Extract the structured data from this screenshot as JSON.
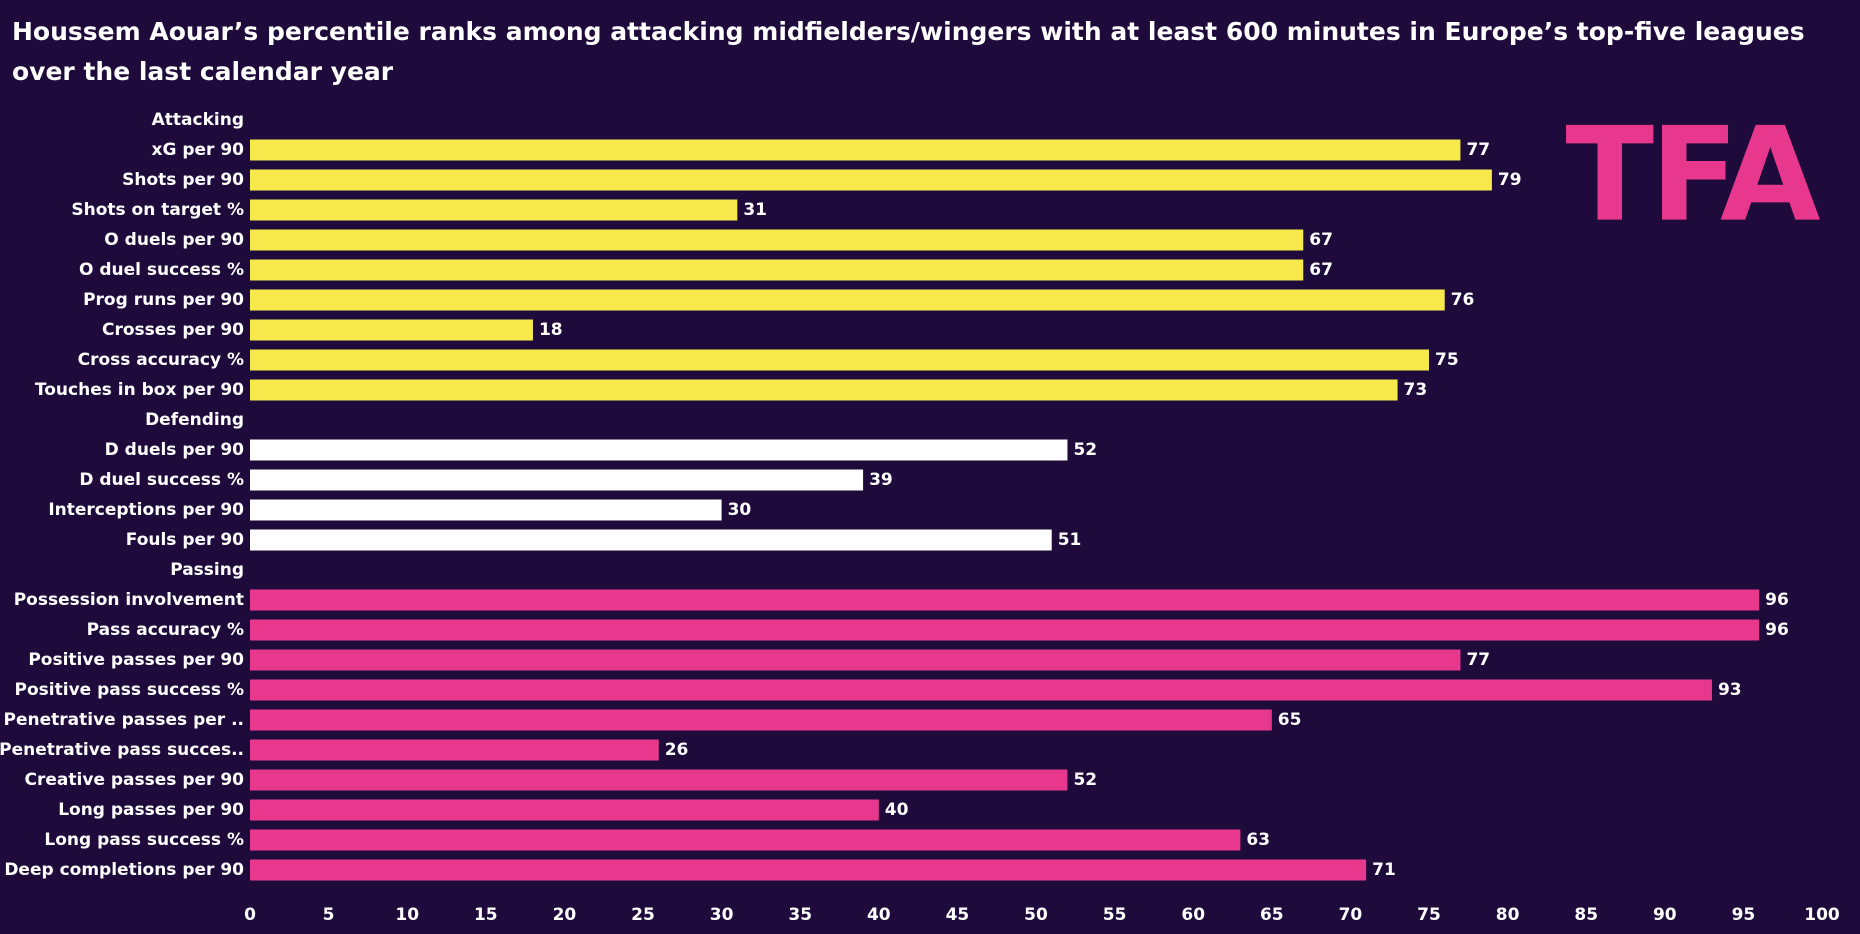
{
  "chart_data": {
    "type": "bar",
    "title": "Houssem Aouar’s percentile ranks among attacking midfielders/wingers with at least 600 minutes in Europe’s top-five leagues over the last calendar year",
    "logo": "TFA",
    "groups": [
      {
        "name": "Attacking",
        "color": "#f7e94b",
        "categories": [
          "xG per 90",
          "Shots per 90",
          "Shots on target %",
          "O duels per 90",
          "O duel success %",
          "Prog runs per 90",
          "Crosses per 90",
          "Cross accuracy %",
          "Touches in box per 90"
        ],
        "values": [
          77,
          79,
          31,
          67,
          67,
          76,
          18,
          75,
          73
        ]
      },
      {
        "name": "Defending",
        "color": "#ffffff",
        "categories": [
          "D duels per 90",
          "D duel success %",
          "Interceptions per 90",
          "Fouls per 90"
        ],
        "values": [
          52,
          39,
          30,
          51
        ]
      },
      {
        "name": "Passing",
        "color": "#e8388e",
        "categories": [
          "Possession involvement",
          "Pass accuracy %",
          "Positive passes per 90",
          "Positive pass success %",
          "Penetrative passes per ..",
          "Penetrative pass succes..",
          "Creative passes per 90",
          "Long passes per 90",
          "Long pass success %",
          "Deep completions per 90"
        ],
        "values": [
          96,
          96,
          77,
          93,
          65,
          26,
          52,
          40,
          63,
          71
        ]
      }
    ],
    "xlim": [
      0,
      100
    ],
    "xticks": [
      0,
      5,
      10,
      15,
      20,
      25,
      30,
      35,
      40,
      45,
      50,
      55,
      60,
      65,
      70,
      75,
      80,
      85,
      90,
      95,
      100
    ]
  }
}
